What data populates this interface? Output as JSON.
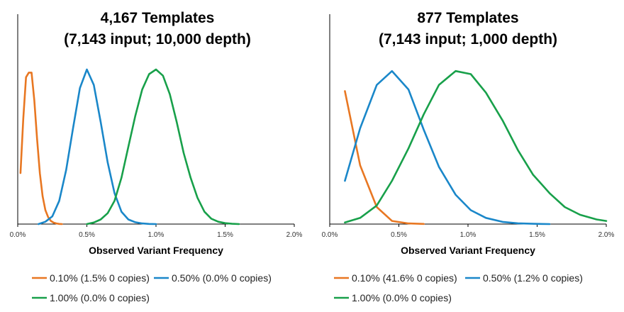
{
  "colors": {
    "orange": "#E87722",
    "blue": "#1A87C9",
    "green": "#18A04A"
  },
  "chart_data": [
    {
      "type": "line",
      "title_lines": [
        "4,167 Templates",
        "(7,143 input; 10,000 depth)"
      ],
      "xlabel": "Observed Variant Frequency",
      "ylabel": "",
      "xlim": [
        0,
        0.02
      ],
      "xticks": [
        "0.0%",
        "0.5%",
        "1.0%",
        "1.5%",
        "2.0%"
      ],
      "yaxis_labels": false,
      "legend_position": "bottom",
      "series": [
        {
          "name": "0.10% (1.5% 0 copies)",
          "color": "orange",
          "x": [
            0.0002,
            0.0004,
            0.0006,
            0.0008,
            0.001,
            0.0012,
            0.0014,
            0.0016,
            0.0018,
            0.002,
            0.0022,
            0.0024,
            0.0026,
            0.0028,
            0.003,
            0.0032
          ],
          "y": [
            0.33,
            0.68,
            0.95,
            0.98,
            0.98,
            0.8,
            0.55,
            0.33,
            0.18,
            0.09,
            0.045,
            0.02,
            0.009,
            0.004,
            0.001,
            0.0
          ]
        },
        {
          "name": "0.50% (0.0% 0 copies)",
          "color": "blue",
          "x": [
            0.0015,
            0.002,
            0.0025,
            0.003,
            0.0035,
            0.004,
            0.0045,
            0.005,
            0.0055,
            0.006,
            0.0065,
            0.007,
            0.0075,
            0.008,
            0.0085,
            0.009,
            0.0095,
            0.01
          ],
          "y": [
            0.0,
            0.015,
            0.05,
            0.15,
            0.35,
            0.62,
            0.88,
            1.0,
            0.9,
            0.66,
            0.4,
            0.2,
            0.08,
            0.03,
            0.012,
            0.004,
            0.001,
            0.0
          ]
        },
        {
          "name": "1.00% (0.0% 0 copies)",
          "color": "green",
          "x": [
            0.005,
            0.0055,
            0.006,
            0.0065,
            0.007,
            0.0075,
            0.008,
            0.0085,
            0.009,
            0.0095,
            0.01,
            0.0105,
            0.011,
            0.0115,
            0.012,
            0.0125,
            0.013,
            0.0135,
            0.014,
            0.0145,
            0.015,
            0.0155,
            0.016
          ],
          "y": [
            0.0,
            0.01,
            0.03,
            0.07,
            0.15,
            0.3,
            0.5,
            0.7,
            0.87,
            0.97,
            1.0,
            0.96,
            0.84,
            0.66,
            0.46,
            0.3,
            0.17,
            0.08,
            0.035,
            0.015,
            0.006,
            0.002,
            0.0
          ]
        }
      ]
    },
    {
      "type": "line",
      "title_lines": [
        "877 Templates",
        "(7,143 input; 1,000 depth)"
      ],
      "xlabel": "Observed Variant Frequency",
      "ylabel": "",
      "xlim": [
        0,
        0.02
      ],
      "xticks": [
        "0.0%",
        "0.5%",
        "1.0%",
        "1.5%",
        "2.0%"
      ],
      "yaxis_labels": false,
      "legend_position": "bottom",
      "series": [
        {
          "name": "0.10% (41.6% 0 copies)",
          "color": "orange",
          "x": [
            0.0011,
            0.0022,
            0.0034,
            0.0045,
            0.0057,
            0.0068
          ],
          "y": [
            0.86,
            0.38,
            0.11,
            0.02,
            0.004,
            0.001
          ]
        },
        {
          "name": "0.50% (1.2% 0 copies)",
          "color": "blue",
          "x": [
            0.0011,
            0.0022,
            0.0034,
            0.0045,
            0.0057,
            0.0068,
            0.0079,
            0.0091,
            0.0102,
            0.0113,
            0.0125,
            0.0136,
            0.0147,
            0.0159
          ],
          "y": [
            0.28,
            0.62,
            0.9,
            0.99,
            0.87,
            0.61,
            0.37,
            0.19,
            0.09,
            0.04,
            0.014,
            0.005,
            0.002,
            0.0
          ]
        },
        {
          "name": "1.00% (0.0% 0 copies)",
          "color": "green",
          "x": [
            0.0011,
            0.0022,
            0.0034,
            0.0045,
            0.0057,
            0.0068,
            0.0079,
            0.0091,
            0.0102,
            0.0113,
            0.0125,
            0.0136,
            0.0147,
            0.0159,
            0.017,
            0.0181,
            0.0193,
            0.02
          ],
          "y": [
            0.01,
            0.04,
            0.12,
            0.28,
            0.49,
            0.71,
            0.9,
            0.99,
            0.97,
            0.85,
            0.67,
            0.48,
            0.32,
            0.2,
            0.11,
            0.06,
            0.03,
            0.02
          ]
        }
      ]
    }
  ]
}
